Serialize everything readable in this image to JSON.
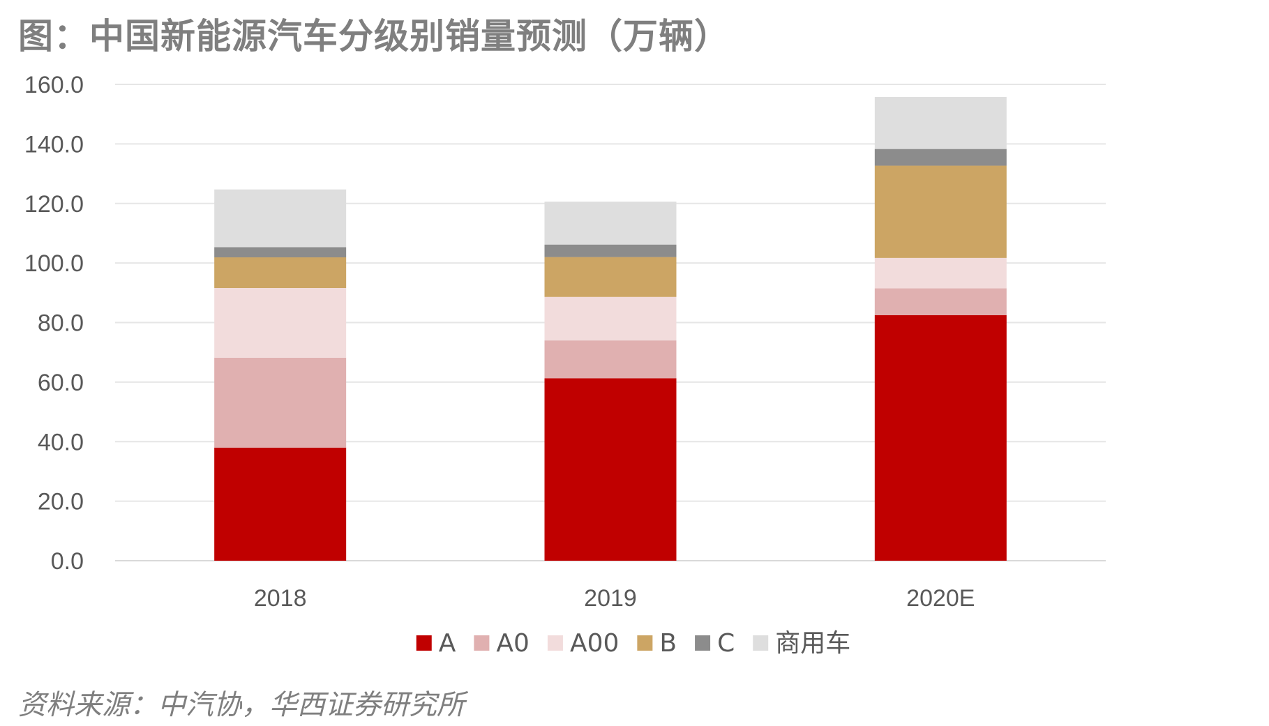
{
  "title": "图：中国新能源汽车分级别销量预测（万辆）",
  "source": "资料来源：中汽协，华西证券研究所",
  "chart_data": {
    "type": "bar",
    "stacked": true,
    "title": "图：中国新能源汽车分级别销量预测（万辆）",
    "xlabel": "",
    "ylabel": "",
    "ylim": [
      0,
      160
    ],
    "yticks": [
      "0.0",
      "20.0",
      "40.0",
      "60.0",
      "80.0",
      "100.0",
      "120.0",
      "140.0",
      "160.0"
    ],
    "grid": true,
    "legend_position": "bottom",
    "categories": [
      "2018",
      "2019",
      "2020E"
    ],
    "series": [
      {
        "name": "A",
        "color": "#c00000",
        "values": [
          38.0,
          61.3,
          82.5
        ]
      },
      {
        "name": "A0",
        "color": "#e0b0b0",
        "values": [
          30.2,
          12.7,
          9.0
        ]
      },
      {
        "name": "A00",
        "color": "#f2dcdc",
        "values": [
          23.4,
          14.6,
          10.2
        ]
      },
      {
        "name": "B",
        "color": "#cca564",
        "values": [
          10.3,
          13.4,
          31.0
        ]
      },
      {
        "name": "C",
        "color": "#8c8c8c",
        "values": [
          3.4,
          4.2,
          5.6
        ]
      },
      {
        "name": "商用车",
        "color": "#dedede",
        "values": [
          19.4,
          14.4,
          17.5
        ]
      }
    ]
  }
}
